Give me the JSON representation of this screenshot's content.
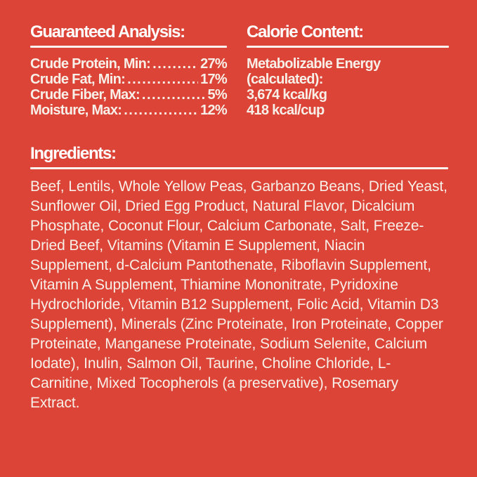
{
  "label": {
    "colors": {
      "background": "#DB4437",
      "heading_text": "#FFFFFF",
      "body_text": "#F8F0E8",
      "rule": "#FBF5EF"
    },
    "guaranteed_analysis": {
      "heading": "Guaranteed Analysis:",
      "rows": [
        {
          "label": "Crude Protein, Min:",
          "value": "27%"
        },
        {
          "label": "Crude Fat, Min:",
          "value": "17%"
        },
        {
          "label": "Crude Fiber, Max:",
          "value": "5%"
        },
        {
          "label": "Moisture, Max:",
          "value": "12%"
        }
      ]
    },
    "calorie_content": {
      "heading": "Calorie Content:",
      "lines": [
        "Metabolizable Energy",
        "(calculated):",
        "3,674 kcal/kg",
        "418 kcal/cup"
      ]
    },
    "ingredients": {
      "heading": "Ingredients:",
      "text": "Beef, Lentils, Whole Yellow Peas, Garbanzo Beans, Dried Yeast, Sunflower Oil, Dried Egg Product, Natural Flavor, Dicalcium Phosphate, Coconut Flour, Calcium Carbonate, Salt, Freeze-Dried Beef, Vitamins (Vitamin E Supplement, Niacin Supplement, d-Calcium Pantothenate, Riboflavin Supplement, Vitamin A Supplement, Thiamine Mononitrate, Pyridoxine Hydrochloride, Vitamin B12 Supplement, Folic Acid, Vitamin D3 Supplement), Minerals (Zinc Proteinate, Iron Proteinate, Copper Proteinate, Manganese Proteinate, Sodium Selenite, Calcium Iodate), Inulin, Salmon Oil, Taurine, Choline Chloride, L-Carnitine, Mixed Tocopherols (a preservative), Rosemary Extract."
    }
  }
}
